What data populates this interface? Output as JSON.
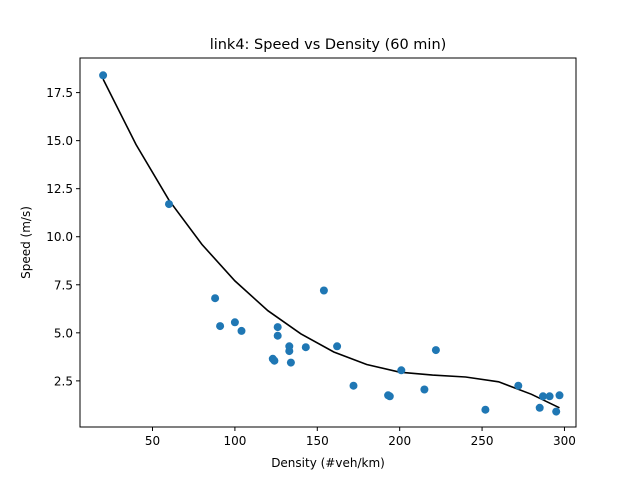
{
  "chart_data": {
    "type": "scatter",
    "title": "link4: Speed vs Density (60 min)",
    "xlabel": "Density (#veh/km)",
    "ylabel": "Speed (m/s)",
    "xlim": [
      6,
      307
    ],
    "ylim": [
      0.1,
      19.3
    ],
    "xticks": [
      50,
      100,
      150,
      200,
      250,
      300
    ],
    "xtick_labels": [
      "50",
      "100",
      "150",
      "200",
      "250",
      "300"
    ],
    "yticks": [
      2.5,
      5.0,
      7.5,
      10.0,
      12.5,
      15.0,
      17.5
    ],
    "ytick_labels": [
      "2.5",
      "5.0",
      "7.5",
      "10.0",
      "12.5",
      "15.0",
      "17.5"
    ],
    "grid": false,
    "legend": "none",
    "series": [
      {
        "kind": "scatter",
        "color": "#1f77b4",
        "points": [
          [
            20,
            18.4
          ],
          [
            60,
            11.7
          ],
          [
            88,
            6.8
          ],
          [
            91,
            5.35
          ],
          [
            100,
            5.55
          ],
          [
            104,
            5.1
          ],
          [
            123,
            3.65
          ],
          [
            124,
            3.55
          ],
          [
            126,
            5.3
          ],
          [
            126,
            4.85
          ],
          [
            133,
            4.05
          ],
          [
            133,
            4.3
          ],
          [
            134,
            3.45
          ],
          [
            143,
            4.25
          ],
          [
            154,
            7.2
          ],
          [
            162,
            4.3
          ],
          [
            172,
            2.25
          ],
          [
            193,
            1.75
          ],
          [
            194,
            1.7
          ],
          [
            201,
            3.05
          ],
          [
            215,
            2.05
          ],
          [
            222,
            4.1
          ],
          [
            252,
            1.0
          ],
          [
            272,
            2.25
          ],
          [
            285,
            1.1
          ],
          [
            287,
            1.7
          ],
          [
            291,
            1.7
          ],
          [
            295,
            0.9
          ],
          [
            297,
            1.75
          ]
        ]
      },
      {
        "kind": "line",
        "color": "#000000",
        "points": [
          [
            20,
            18.2
          ],
          [
            40,
            14.8
          ],
          [
            60,
            11.9
          ],
          [
            80,
            9.6
          ],
          [
            100,
            7.7
          ],
          [
            120,
            6.15
          ],
          [
            140,
            4.95
          ],
          [
            160,
            4.0
          ],
          [
            180,
            3.35
          ],
          [
            200,
            2.95
          ],
          [
            220,
            2.8
          ],
          [
            240,
            2.7
          ],
          [
            260,
            2.45
          ],
          [
            280,
            1.8
          ],
          [
            297,
            1.1
          ]
        ]
      }
    ]
  }
}
